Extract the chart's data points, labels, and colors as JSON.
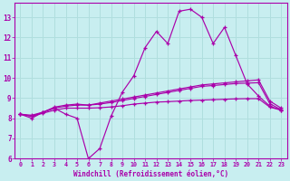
{
  "bg_color": "#c8eef0",
  "grid_color": "#aadddd",
  "line_color": "#aa00aa",
  "xlabel": "Windchill (Refroidissement éolien,°C)",
  "xlim": [
    -0.5,
    23.5
  ],
  "ylim": [
    6,
    13.7
  ],
  "yticks": [
    6,
    7,
    8,
    9,
    10,
    11,
    12,
    13
  ],
  "xticks": [
    0,
    1,
    2,
    3,
    4,
    5,
    6,
    7,
    8,
    9,
    10,
    11,
    12,
    13,
    14,
    15,
    16,
    17,
    18,
    19,
    20,
    21,
    22,
    23
  ],
  "series": {
    "line1": [
      8.2,
      8.0,
      8.3,
      8.5,
      8.2,
      8.0,
      6.0,
      6.5,
      8.1,
      9.3,
      10.1,
      11.5,
      12.3,
      11.7,
      13.3,
      13.4,
      13.0,
      11.7,
      12.5,
      11.1,
      9.7,
      9.1,
      8.6,
      8.4
    ],
    "line2": [
      8.2,
      8.1,
      8.3,
      8.55,
      8.65,
      8.7,
      8.65,
      8.75,
      8.85,
      8.95,
      9.05,
      9.15,
      9.25,
      9.35,
      9.45,
      9.55,
      9.65,
      9.7,
      9.75,
      9.8,
      9.85,
      9.9,
      8.85,
      8.5
    ],
    "line3": [
      8.2,
      8.15,
      8.3,
      8.5,
      8.6,
      8.65,
      8.65,
      8.7,
      8.78,
      8.88,
      8.98,
      9.08,
      9.18,
      9.28,
      9.38,
      9.48,
      9.58,
      9.62,
      9.67,
      9.72,
      9.74,
      9.76,
      8.72,
      8.42
    ],
    "line4": [
      8.2,
      8.1,
      8.25,
      8.4,
      8.5,
      8.5,
      8.5,
      8.52,
      8.56,
      8.62,
      8.7,
      8.75,
      8.8,
      8.82,
      8.85,
      8.88,
      8.9,
      8.92,
      8.94,
      8.96,
      8.97,
      8.97,
      8.55,
      8.4
    ]
  }
}
